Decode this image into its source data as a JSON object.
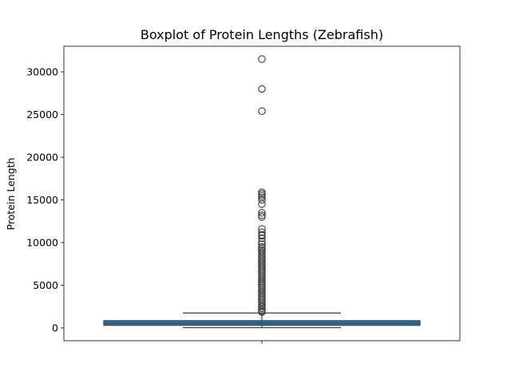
{
  "chart_data": {
    "type": "boxplot",
    "title": "Boxplot of Protein Lengths (Zebrafish)",
    "xlabel": "",
    "ylabel": "Protein Length",
    "ylim": [
      -1500,
      33000
    ],
    "yticks": [
      0,
      5000,
      10000,
      15000,
      20000,
      25000,
      30000
    ],
    "ytick_labels": [
      "0",
      "5000",
      "10000",
      "15000",
      "20000",
      "25000",
      "30000"
    ],
    "grid": false,
    "box": {
      "min": 30,
      "q1": 300,
      "median": 550,
      "q3": 850,
      "max": 1750
    },
    "box_color": "#1f77b4",
    "outliers": [
      31500,
      28000,
      25400,
      15900,
      15700,
      15500,
      15300,
      15000,
      14500,
      13500,
      13200,
      13000,
      11600,
      11200,
      10900,
      10800,
      10500,
      10100,
      9800,
      9500,
      9300,
      9100,
      8900,
      8700,
      8500,
      8300,
      8100,
      7900,
      7700,
      7500,
      7300,
      7100,
      6900,
      6700,
      6500,
      6300,
      6100,
      5900,
      5700,
      5500,
      5300,
      5100,
      4900,
      4700,
      4500,
      4300,
      4100,
      3900,
      3700,
      3500,
      3300,
      3100,
      2900,
      2700,
      2500,
      2300,
      2100,
      1950,
      1850
    ]
  }
}
